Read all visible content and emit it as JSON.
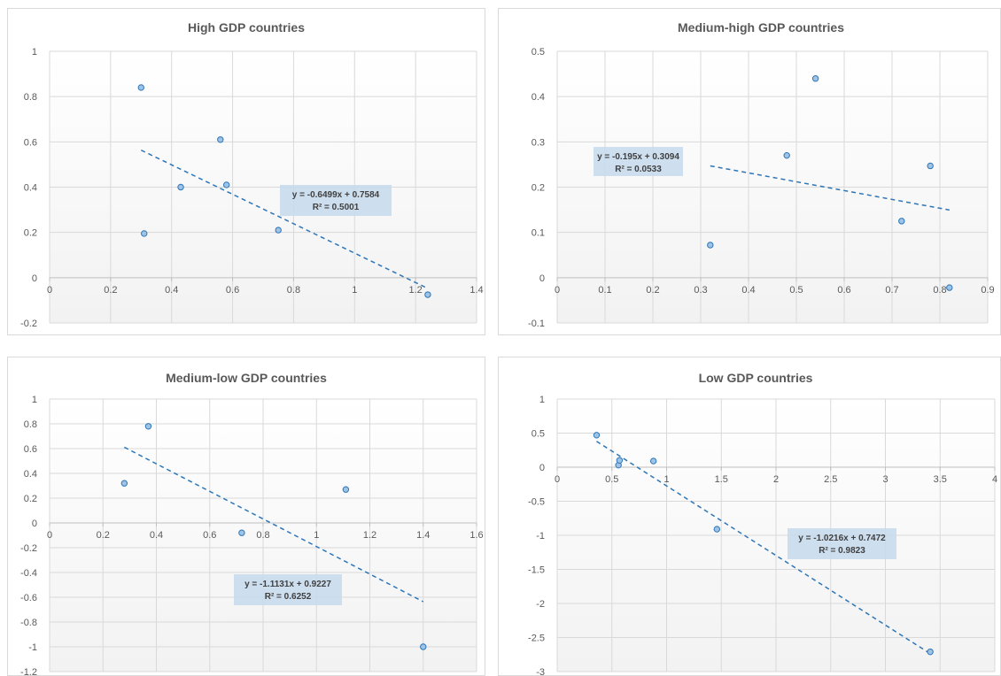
{
  "colors": {
    "marker_fill": "#9dc3e6",
    "marker_stroke": "#2e75b6",
    "trend": "#2e75b6",
    "grid": "#d9d9d9",
    "axis": "#bfbfbf",
    "plot_bg_bottom": "#f2f2f2",
    "eq_box": "#c6d9ec"
  },
  "chart_data": [
    {
      "type": "scatter",
      "title": "High GDP countries",
      "xlim": [
        0,
        1.4
      ],
      "ylim": [
        -0.2,
        1
      ],
      "x_ticks": [
        "0",
        "0.2",
        "0.4",
        "0.6",
        "0.8",
        "1",
        "1.2",
        "1.4"
      ],
      "y_ticks": [
        "-0.2",
        "0",
        "0.2",
        "0.4",
        "0.6",
        "0.8",
        "1"
      ],
      "points": [
        {
          "x": 0.3,
          "y": 0.84
        },
        {
          "x": 0.31,
          "y": 0.195
        },
        {
          "x": 0.43,
          "y": 0.4
        },
        {
          "x": 0.56,
          "y": 0.61
        },
        {
          "x": 0.58,
          "y": 0.41
        },
        {
          "x": 0.75,
          "y": 0.21
        },
        {
          "x": 1.24,
          "y": -0.075
        }
      ],
      "trendline": {
        "slope": -0.6499,
        "intercept": 0.7584,
        "x_range": [
          0.3,
          1.24
        ]
      },
      "equation": "y = -0.6499x + 0.7584",
      "r2": "R² = 0.5001",
      "grid": true
    },
    {
      "type": "scatter",
      "title": "Medium-high GDP countries",
      "xlim": [
        0,
        0.9
      ],
      "ylim": [
        -0.1,
        0.5
      ],
      "x_ticks": [
        "0",
        "0.1",
        "0.2",
        "0.3",
        "0.4",
        "0.5",
        "0.6",
        "0.7",
        "0.8",
        "0.9"
      ],
      "y_ticks": [
        "-0.1",
        "0",
        "0.1",
        "0.2",
        "0.3",
        "0.4",
        "0.5"
      ],
      "points": [
        {
          "x": 0.32,
          "y": 0.072
        },
        {
          "x": 0.48,
          "y": 0.27
        },
        {
          "x": 0.54,
          "y": 0.44
        },
        {
          "x": 0.72,
          "y": 0.125
        },
        {
          "x": 0.78,
          "y": 0.247
        },
        {
          "x": 0.82,
          "y": -0.022
        }
      ],
      "trendline": {
        "slope": -0.195,
        "intercept": 0.3094,
        "x_range": [
          0.32,
          0.82
        ]
      },
      "equation": "y = -0.195x + 0.3094",
      "r2": "R² = 0.0533",
      "grid": true
    },
    {
      "type": "scatter",
      "title": "Medium-low  GDP countries",
      "xlim": [
        0,
        1.6
      ],
      "ylim": [
        -1.2,
        1
      ],
      "x_ticks": [
        "0",
        "0.2",
        "0.4",
        "0.6",
        "0.8",
        "1",
        "1.2",
        "1.4",
        "1.6"
      ],
      "y_ticks": [
        "-1.2",
        "-1",
        "-0.8",
        "-0.6",
        "-0.4",
        "-0.2",
        "0",
        "0.2",
        "0.4",
        "0.6",
        "0.8",
        "1"
      ],
      "points": [
        {
          "x": 0.28,
          "y": 0.32
        },
        {
          "x": 0.37,
          "y": 0.78
        },
        {
          "x": 0.72,
          "y": -0.08
        },
        {
          "x": 1.11,
          "y": 0.27
        },
        {
          "x": 1.4,
          "y": -1.0
        }
      ],
      "trendline": {
        "slope": -1.1131,
        "intercept": 0.9227,
        "x_range": [
          0.28,
          1.4
        ]
      },
      "equation": "y = -1.1131x + 0.9227",
      "r2": "R² = 0.6252",
      "grid": true
    },
    {
      "type": "scatter",
      "title": "Low GDP countries",
      "xlim": [
        0,
        4
      ],
      "ylim": [
        -3,
        1
      ],
      "x_ticks": [
        "0",
        "0.5",
        "1",
        "1.5",
        "2",
        "2.5",
        "3",
        "3.5",
        "4"
      ],
      "y_ticks": [
        "-3",
        "-2.5",
        "-2",
        "-1.5",
        "-1",
        "-0.5",
        "0",
        "0.5",
        "1"
      ],
      "points": [
        {
          "x": 0.36,
          "y": 0.47
        },
        {
          "x": 0.56,
          "y": 0.03
        },
        {
          "x": 0.57,
          "y": 0.1
        },
        {
          "x": 0.88,
          "y": 0.09
        },
        {
          "x": 1.46,
          "y": -0.91
        },
        {
          "x": 3.41,
          "y": -2.71
        }
      ],
      "trendline": {
        "slope": -1.0216,
        "intercept": 0.7472,
        "x_range": [
          0.36,
          3.41
        ]
      },
      "equation": "y = -1.0216x + 0.7472",
      "r2": "R² = 0.9823",
      "grid": true
    }
  ]
}
